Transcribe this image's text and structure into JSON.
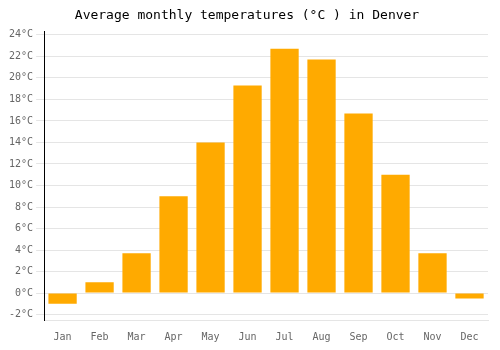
{
  "chart_data": {
    "type": "bar",
    "title": "Average monthly temperatures (°C ) in Denver",
    "categories": [
      "Jan",
      "Feb",
      "Mar",
      "Apr",
      "May",
      "Jun",
      "Jul",
      "Aug",
      "Sep",
      "Oct",
      "Nov",
      "Dec"
    ],
    "values": [
      -1.0,
      1.0,
      3.7,
      9.0,
      14.0,
      19.3,
      22.7,
      21.7,
      16.7,
      11.0,
      3.7,
      -0.5
    ],
    "color": "#FFAA00",
    "ylim": [
      -2.5,
      24.3
    ],
    "yticks": [
      {
        "value": -2,
        "label": "-2°C"
      },
      {
        "value": 0,
        "label": "0°C"
      },
      {
        "value": 2,
        "label": "2°C"
      },
      {
        "value": 4,
        "label": "4°C"
      },
      {
        "value": 6,
        "label": "6°C"
      },
      {
        "value": 8,
        "label": "8°C"
      },
      {
        "value": 10,
        "label": "10°C"
      },
      {
        "value": 12,
        "label": "12°C"
      },
      {
        "value": 14,
        "label": "14°C"
      },
      {
        "value": 16,
        "label": "16°C"
      },
      {
        "value": 18,
        "label": "18°C"
      },
      {
        "value": 20,
        "label": "20°C"
      },
      {
        "value": 22,
        "label": "22°C"
      },
      {
        "value": 24,
        "label": "24°C"
      }
    ],
    "grid": true
  }
}
